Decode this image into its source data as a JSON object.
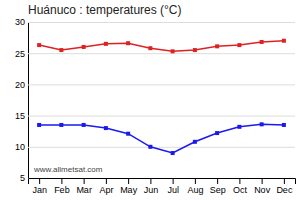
{
  "chart_data": {
    "type": "line",
    "title": "Huánuco : temperatures (°C)",
    "categories": [
      "Jan",
      "Feb",
      "Mar",
      "Apr",
      "May",
      "Jun",
      "Jul",
      "Aug",
      "Sep",
      "Oct",
      "Nov",
      "Dec"
    ],
    "series": [
      {
        "color": "#dd2222",
        "marker": "square",
        "values": [
          26.3,
          25.5,
          26.0,
          26.5,
          26.6,
          25.8,
          25.3,
          25.5,
          26.1,
          26.3,
          26.8,
          27.0
        ]
      },
      {
        "color": "#1a1aee",
        "marker": "square",
        "values": [
          13.5,
          13.5,
          13.5,
          13.0,
          12.1,
          10.0,
          9.0,
          10.8,
          12.2,
          13.2,
          13.6,
          13.5
        ]
      }
    ],
    "ylim": [
      5,
      30
    ],
    "yticks": [
      5,
      10,
      15,
      20,
      25,
      30
    ],
    "grid": true,
    "annotations": [
      "www.allmetsat.com"
    ]
  }
}
